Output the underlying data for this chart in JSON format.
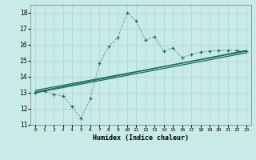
{
  "title": "",
  "xlabel": "Humidex (Indice chaleur)",
  "bg_color": "#c8ebe8",
  "grid_color": "#aed4d0",
  "line_color": "#1a6b5a",
  "xlim": [
    -0.5,
    23.5
  ],
  "ylim": [
    11,
    18.5
  ],
  "xticks": [
    0,
    1,
    2,
    3,
    4,
    5,
    6,
    7,
    8,
    9,
    10,
    11,
    12,
    13,
    14,
    15,
    16,
    17,
    18,
    19,
    20,
    21,
    22,
    23
  ],
  "yticks": [
    11,
    12,
    13,
    14,
    15,
    16,
    17,
    18
  ],
  "line1_x": [
    0,
    1,
    2,
    3,
    4,
    5,
    6,
    7,
    8,
    9,
    10,
    11,
    12,
    13,
    14,
    15,
    16,
    17,
    18,
    19,
    20,
    21,
    22,
    23
  ],
  "line1_y": [
    13.0,
    13.1,
    12.9,
    12.8,
    12.15,
    11.4,
    12.65,
    14.85,
    15.9,
    16.45,
    18.0,
    17.5,
    16.3,
    16.5,
    15.6,
    15.8,
    15.2,
    15.4,
    15.55,
    15.6,
    15.65,
    15.65,
    15.65,
    15.6
  ],
  "line2_x": [
    0,
    23
  ],
  "line2_y": [
    13.05,
    15.65
  ],
  "line3_x": [
    0,
    23
  ],
  "line3_y": [
    13.15,
    15.6
  ],
  "line4_x": [
    0,
    23
  ],
  "line4_y": [
    13.0,
    15.5
  ]
}
